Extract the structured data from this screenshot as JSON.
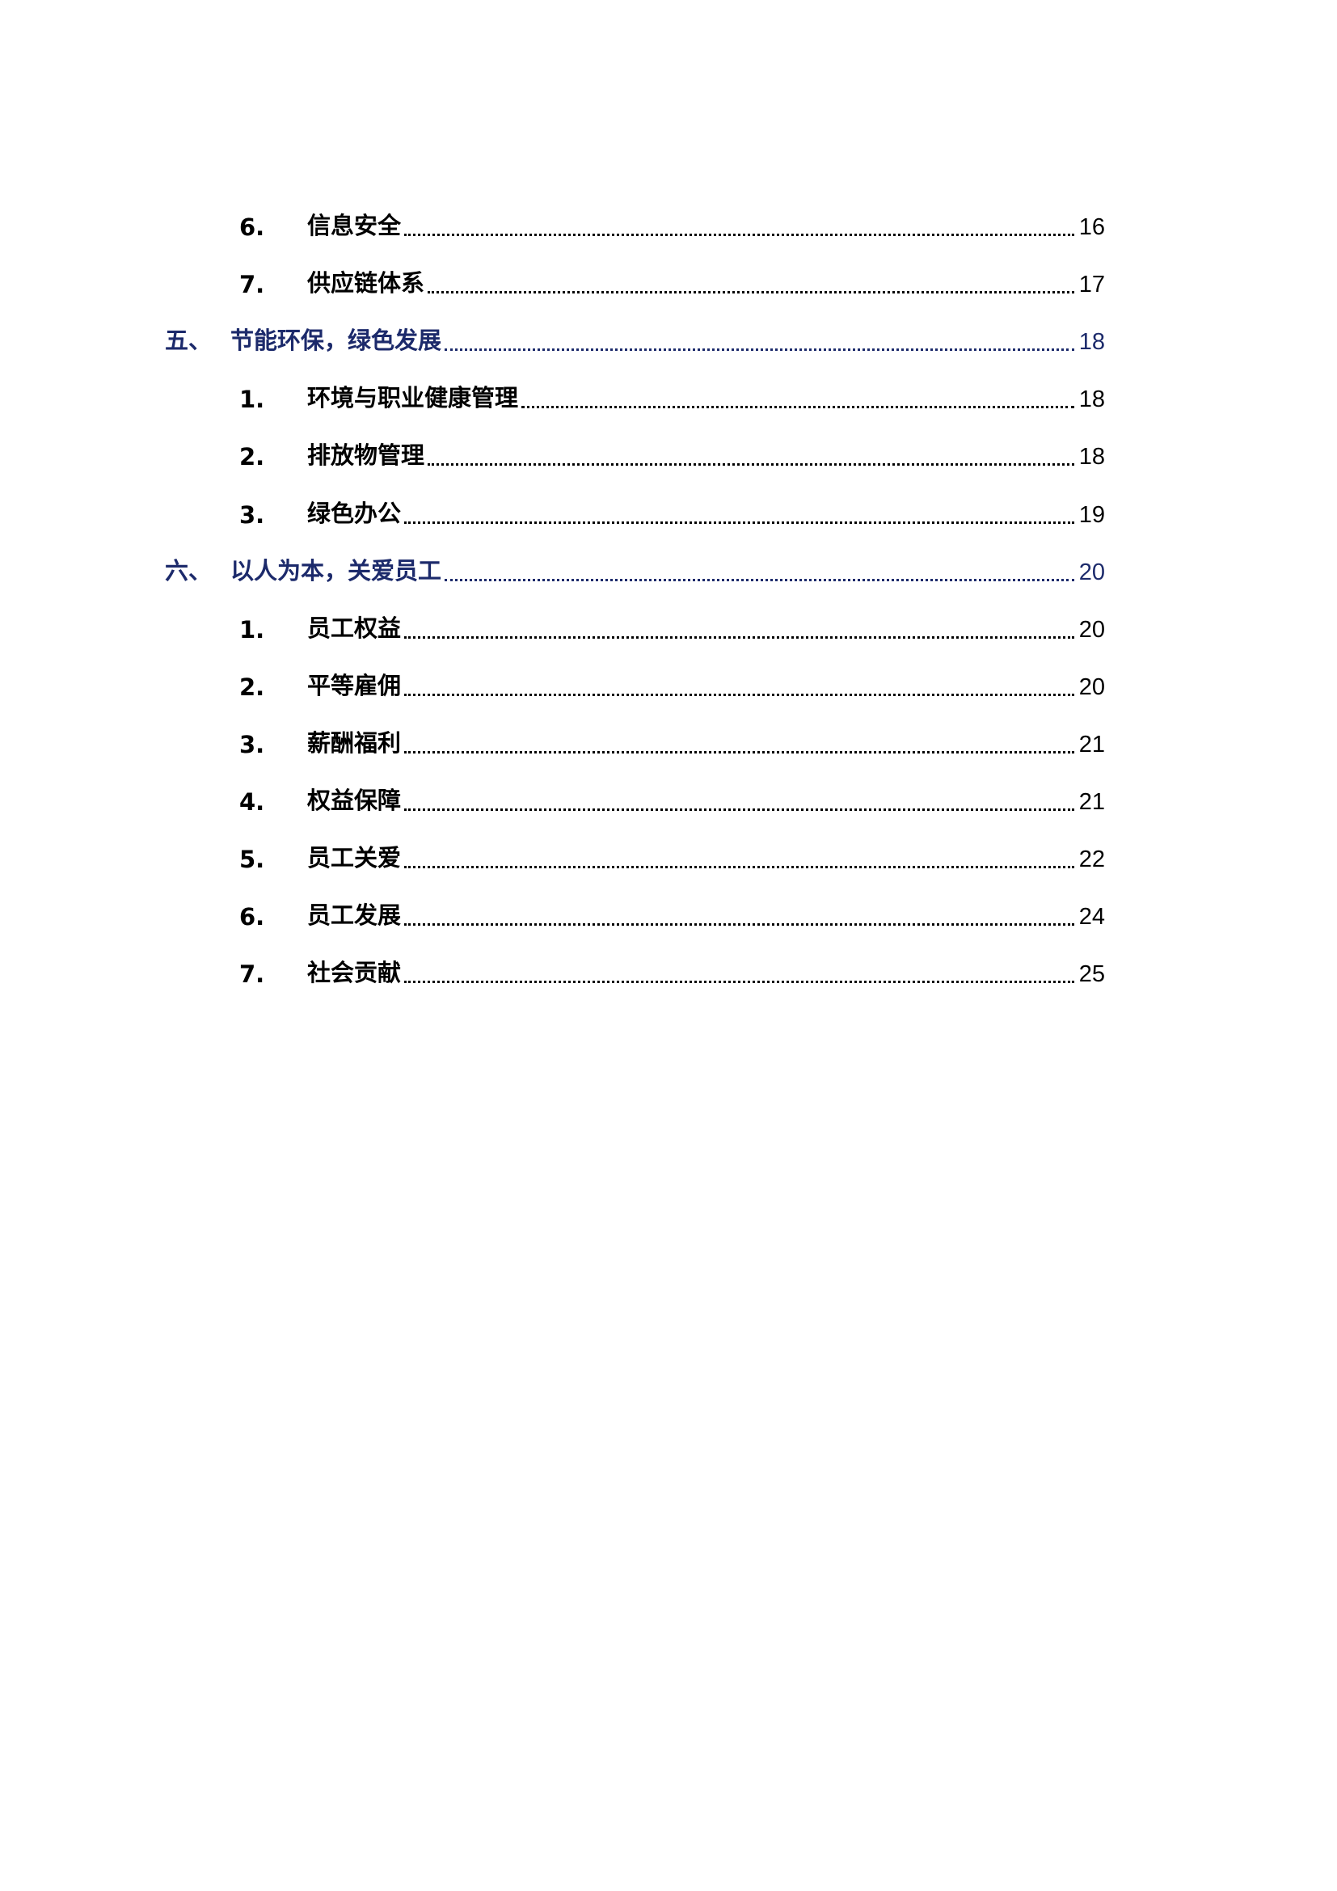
{
  "toc": [
    {
      "num": "6.",
      "title": "信息安全",
      "page": "16",
      "level": 2
    },
    {
      "num": "7.",
      "title": "供应链体系",
      "page": "17",
      "level": 2
    },
    {
      "num": "五、",
      "title": "节能环保，绿色发展",
      "page": "18",
      "level": 1
    },
    {
      "num": "1.",
      "title": "环境与职业健康管理",
      "page": "18",
      "level": 2
    },
    {
      "num": "2.",
      "title": "排放物管理",
      "page": "18",
      "level": 2
    },
    {
      "num": "3.",
      "title": "绿色办公",
      "page": "19",
      "level": 2
    },
    {
      "num": "六、",
      "title": "以人为本，关爱员工",
      "page": "20",
      "level": 1
    },
    {
      "num": "1.",
      "title": "员工权益",
      "page": "20",
      "level": 2
    },
    {
      "num": "2.",
      "title": "平等雇佣",
      "page": "20",
      "level": 2
    },
    {
      "num": "3.",
      "title": "薪酬福利",
      "page": "21",
      "level": 2
    },
    {
      "num": "4.",
      "title": "权益保障",
      "page": "21",
      "level": 2
    },
    {
      "num": "5.",
      "title": "员工关爱",
      "page": "22",
      "level": 2
    },
    {
      "num": "6.",
      "title": "员工发展",
      "page": "24",
      "level": 2
    },
    {
      "num": "7.",
      "title": "社会贡献",
      "page": "25",
      "level": 2
    }
  ],
  "colors": {
    "section": "#1c2a6b",
    "subsection": "#000000"
  }
}
